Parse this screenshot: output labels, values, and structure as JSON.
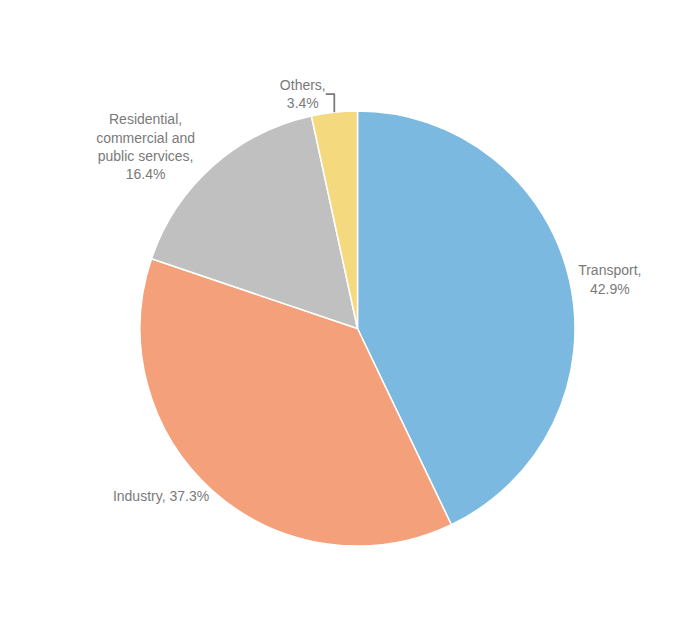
{
  "chart_data": {
    "type": "pie",
    "values": [
      42.9,
      37.3,
      16.4,
      3.4
    ],
    "value_labels": [
      "Transport,\n42.9%",
      "Industry, 37.3%",
      "Residential,\ncommercial and\npublic services,\n16.4%",
      "Others,\n3.4%"
    ],
    "colors": [
      "#7cb9e0",
      "#f4a07a",
      "#c0c0c0",
      "#f5d97e"
    ],
    "data_labels": true
  }
}
